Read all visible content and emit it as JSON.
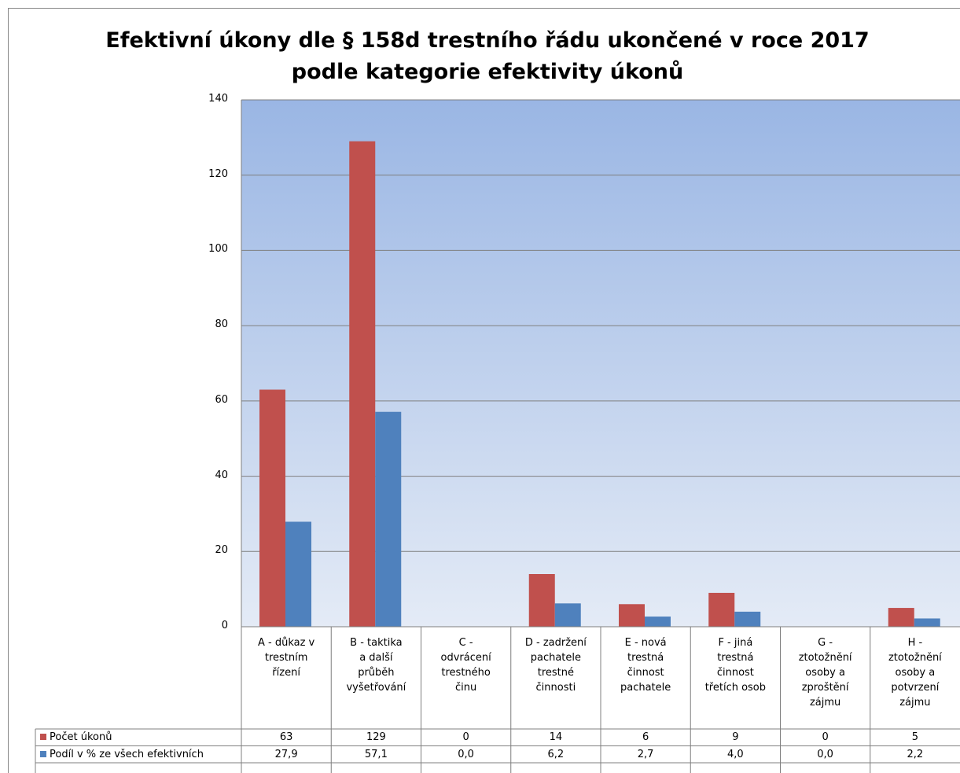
{
  "chart_data": {
    "type": "bar",
    "title": "Efektivní  úkony dle § 158d trestního řádu ukončené v roce 2017\npodle kategorie efektivity úkonů",
    "categories": [
      "A - důkaz v trestním řízení",
      "B - taktika a další průběh vyšetřování",
      "C - odvrácení trestného činu",
      "D - zadržení pachatele trestné činnosti",
      "E - nová trestná činnost pachatele",
      "F - jiná trestná činnost třetích osob",
      "G - ztotožnění osoby a zproštění zájmu",
      "H - ztotožnění osoby a potvrzení zájmu"
    ],
    "series": [
      {
        "name": "Počet úkonů",
        "color": "#c0504d",
        "values": [
          63,
          129,
          0,
          14,
          6,
          9,
          0,
          5
        ]
      },
      {
        "name": "Podíl v % ze všech efektivních",
        "color": "#4f81bd",
        "values": [
          27.9,
          57.1,
          0.0,
          6.2,
          2.7,
          4.0,
          0.0,
          2.2
        ],
        "value_labels": [
          "27,9",
          "57,1",
          "0,0",
          "6,2",
          "2,7",
          "4,0",
          "0,0",
          "2,2"
        ]
      }
    ],
    "ylim": [
      0,
      140
    ],
    "yticks": [
      0,
      20,
      40,
      60,
      80,
      100,
      120,
      140
    ],
    "grid": true
  }
}
